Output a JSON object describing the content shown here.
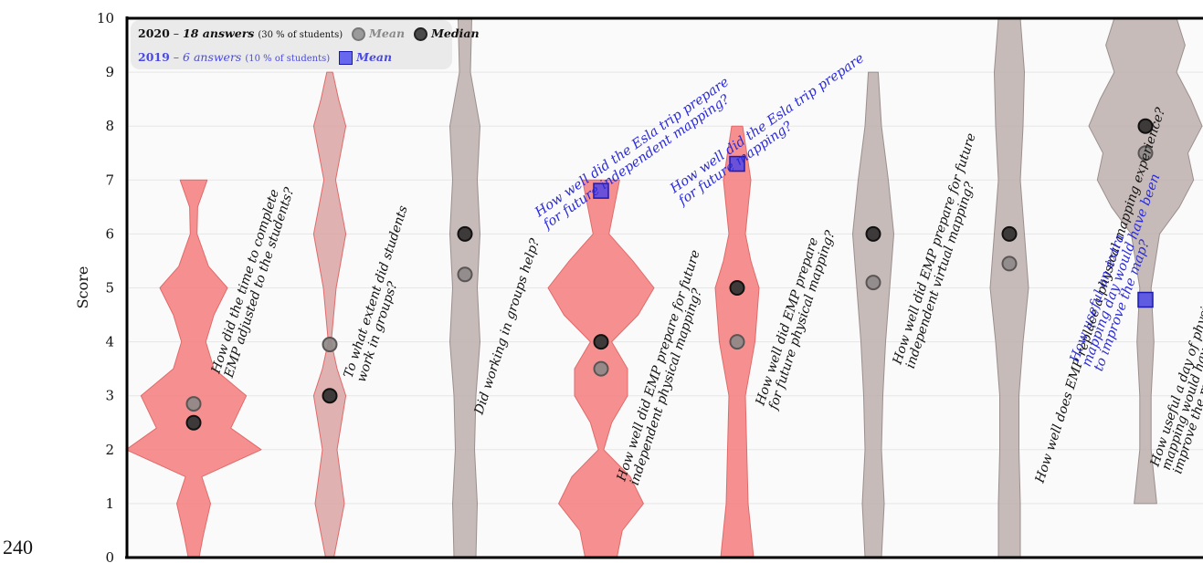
{
  "page_number": "240",
  "legend": {
    "row2020": {
      "year": "2020",
      "dash": "–",
      "answers": "18 answers",
      "pct": "(30 % of students)",
      "mean": "Mean",
      "median": "Median"
    },
    "row2019": {
      "year": "2019",
      "dash": "–",
      "answers": "6 answers",
      "pct": "(10 % of students)",
      "mean": "Mean"
    }
  },
  "chart_data": {
    "type": "violin",
    "ylabel": "Score",
    "ylim": [
      0,
      10
    ],
    "yticks": [
      0,
      1,
      2,
      3,
      4,
      5,
      6,
      7,
      8,
      9,
      10
    ],
    "grid": true,
    "legend_position": "top-left",
    "colors": {
      "red": "#f47c7c",
      "rose": "#dba3a3",
      "grey": "#bcafad",
      "blue_mark": "#3c3cf0",
      "blue_text": "#2a2ad8"
    },
    "series": [
      {
        "question": "How did the time to complete EMP adjusted to the students?",
        "label_lines": [
          "How did the time to complete",
          "EMP adjusted to the students?"
        ],
        "color": "red",
        "mean_2020": 2.85,
        "median_2020": 2.5,
        "profile": [
          [
            0,
            0.08
          ],
          [
            0.4,
            0.14
          ],
          [
            1,
            0.25
          ],
          [
            1.5,
            0.12
          ],
          [
            2,
            1.0
          ],
          [
            2.4,
            0.55
          ],
          [
            3,
            0.78
          ],
          [
            3.5,
            0.3
          ],
          [
            4,
            0.18
          ],
          [
            4.5,
            0.3
          ],
          [
            5,
            0.5
          ],
          [
            5.4,
            0.22
          ],
          [
            6,
            0.05
          ],
          [
            6.5,
            0.06
          ],
          [
            7,
            0.2
          ]
        ]
      },
      {
        "question": "To what extent did students work in groups?",
        "label_lines": [
          "To what extent did students",
          "work in groups?"
        ],
        "color": "rose",
        "mean_2020": 3.95,
        "median_2020": 3.0,
        "profile": [
          [
            0,
            0.14
          ],
          [
            1,
            0.5
          ],
          [
            2,
            0.25
          ],
          [
            3,
            0.55
          ],
          [
            3.5,
            0.25
          ],
          [
            4,
            0.05
          ],
          [
            5,
            0.22
          ],
          [
            6,
            0.55
          ],
          [
            7,
            0.2
          ],
          [
            8,
            0.55
          ],
          [
            8.5,
            0.3
          ],
          [
            9,
            0.1
          ]
        ]
      },
      {
        "question": "Did working in groups help?",
        "label_lines": [
          "Did working in groups help?"
        ],
        "color": "grey",
        "mean_2020": 5.25,
        "median_2020": 6.0,
        "profile": [
          [
            0,
            0.4
          ],
          [
            1,
            0.45
          ],
          [
            2,
            0.35
          ],
          [
            3,
            0.4
          ],
          [
            4,
            0.55
          ],
          [
            5,
            0.45
          ],
          [
            6,
            0.55
          ],
          [
            7,
            0.45
          ],
          [
            8,
            0.55
          ],
          [
            9,
            0.2
          ],
          [
            10,
            0.25
          ]
        ]
      },
      {
        "question": "How well did EMP prepare for future independent physical mapping?",
        "label_lines": [
          "How well did EMP prepare for future",
          "independent physical mapping?"
        ],
        "color": "red",
        "mean_2020": 3.5,
        "median_2020": 4.0,
        "mean_2019": 6.8,
        "profile": [
          [
            0,
            0.3
          ],
          [
            0.5,
            0.4
          ],
          [
            1,
            0.8
          ],
          [
            1.5,
            0.55
          ],
          [
            2,
            0.05
          ],
          [
            2.5,
            0.2
          ],
          [
            3,
            0.5
          ],
          [
            3.5,
            0.5
          ],
          [
            4,
            0.2
          ],
          [
            4.5,
            0.7
          ],
          [
            5,
            1.0
          ],
          [
            5.5,
            0.6
          ],
          [
            6,
            0.15
          ],
          [
            6.5,
            0.25
          ],
          [
            7,
            0.35
          ]
        ]
      },
      {
        "question": "How well did EMP prepare for future physical mapping?",
        "label_lines": [
          "How well did EMP prepare",
          "for future physical mapping?"
        ],
        "color": "red",
        "mean_2020": 4.0,
        "median_2020": 5.0,
        "mean_2019": 7.3,
        "profile": [
          [
            0,
            0.6
          ],
          [
            0.5,
            0.5
          ],
          [
            1,
            0.4
          ],
          [
            2,
            0.35
          ],
          [
            3,
            0.3
          ],
          [
            4,
            0.65
          ],
          [
            5,
            0.8
          ],
          [
            5.5,
            0.5
          ],
          [
            6,
            0.3
          ],
          [
            7,
            0.5
          ],
          [
            8,
            0.2
          ]
        ]
      },
      {
        "question": "How well did EMP prepare for future independent virtual mapping?",
        "label_lines": [
          "How well did EMP prepare for future",
          "independent virtual mapping?"
        ],
        "color": "grey",
        "mean_2020": 5.1,
        "median_2020": 6.0,
        "profile": [
          [
            0,
            0.3
          ],
          [
            1,
            0.4
          ],
          [
            2,
            0.3
          ],
          [
            3,
            0.35
          ],
          [
            4,
            0.45
          ],
          [
            5,
            0.6
          ],
          [
            6,
            0.75
          ],
          [
            7,
            0.55
          ],
          [
            8,
            0.3
          ],
          [
            9,
            0.18
          ]
        ]
      },
      {
        "question": "How well does EMP replace a physical mapping experience?",
        "label_lines": [
          "How well does EMP replace a physical mapping experience?"
        ],
        "color": "grey",
        "mean_2020": 5.45,
        "median_2020": 6.0,
        "profile": [
          [
            0,
            0.4
          ],
          [
            1,
            0.4
          ],
          [
            2,
            0.35
          ],
          [
            3,
            0.35
          ],
          [
            4,
            0.5
          ],
          [
            5,
            0.7
          ],
          [
            6,
            0.55
          ],
          [
            7,
            0.4
          ],
          [
            8,
            0.5
          ],
          [
            9,
            0.55
          ],
          [
            10,
            0.4
          ]
        ]
      },
      {
        "question": "How useful a day of physical mapping would have been to improve the map?",
        "label_lines": [
          "How useful a day of physical",
          "mapping would have been to",
          "improve the map?"
        ],
        "color": "grey",
        "mean_2020": 7.5,
        "median_2020": 8.0,
        "mean_2019": 4.78,
        "profile": [
          [
            1,
            0.2
          ],
          [
            2,
            0.1
          ],
          [
            3,
            0.1
          ],
          [
            4,
            0.15
          ],
          [
            5,
            0.1
          ],
          [
            6,
            0.25
          ],
          [
            6.5,
            0.6
          ],
          [
            7,
            0.85
          ],
          [
            7.5,
            0.75
          ],
          [
            8,
            1.0
          ],
          [
            8.5,
            0.8
          ],
          [
            9,
            0.55
          ],
          [
            9.5,
            0.7
          ],
          [
            10,
            0.55
          ]
        ]
      }
    ],
    "blue_annotations": [
      {
        "lines": [
          "How well did  the Esla trip prepare",
          "for future independent mapping?"
        ]
      },
      {
        "lines": [
          "How well did  the Esla trip prepare",
          "for future mapping?"
        ]
      },
      {
        "lines": [
          "How useful an extra",
          "mapping day would have been",
          "to improve the map?"
        ]
      }
    ]
  }
}
